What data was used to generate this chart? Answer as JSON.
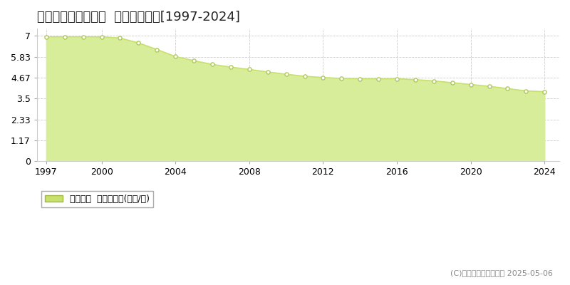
{
  "title": "北佐久郡立科町芦田  基準地価推移[1997-2024]",
  "years": [
    1997,
    1998,
    1999,
    2000,
    2001,
    2002,
    2003,
    2004,
    2005,
    2006,
    2007,
    2008,
    2009,
    2010,
    2011,
    2012,
    2013,
    2014,
    2015,
    2016,
    2017,
    2018,
    2019,
    2020,
    2021,
    2022,
    2023,
    2024
  ],
  "values": [
    6.94,
    6.94,
    6.94,
    6.94,
    6.87,
    6.6,
    6.23,
    5.84,
    5.61,
    5.4,
    5.25,
    5.12,
    4.98,
    4.85,
    4.74,
    4.67,
    4.62,
    4.6,
    4.6,
    4.6,
    4.55,
    4.48,
    4.38,
    4.28,
    4.18,
    4.05,
    3.92,
    3.88
  ],
  "yticks": [
    0,
    1.17,
    2.33,
    3.5,
    4.67,
    5.83,
    7
  ],
  "ytick_labels": [
    "0",
    "1.17",
    "2.33",
    "3.5",
    "4.67",
    "5.83",
    "7"
  ],
  "xticks": [
    1997,
    2000,
    2004,
    2008,
    2012,
    2016,
    2020,
    2024
  ],
  "ylim": [
    0,
    7.4
  ],
  "xlim": [
    1996.5,
    2024.8
  ],
  "line_color": "#c8e06e",
  "fill_color": "#d8ed9a",
  "marker_facecolor": "#ffffff",
  "marker_edgecolor": "#b0c860",
  "bg_color": "#ffffff",
  "plot_bg_color": "#ffffff",
  "grid_color": "#cccccc",
  "legend_label": "基準地価  平均坪単価(万円/坪)",
  "legend_marker_color": "#c8e06e",
  "legend_marker_edgecolor": "#a0b840",
  "copyright_text": "(C)土地価格ドットコム 2025-05-06",
  "title_fontsize": 13,
  "tick_fontsize": 9,
  "legend_fontsize": 9,
  "copyright_fontsize": 8
}
